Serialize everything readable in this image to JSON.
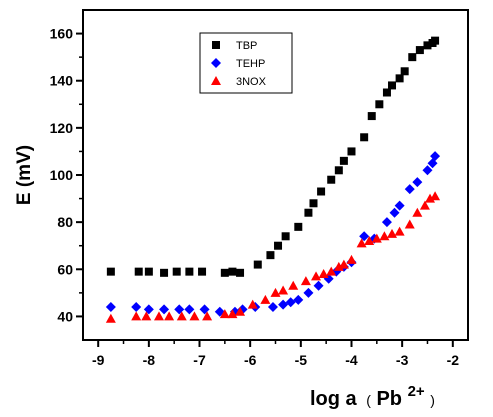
{
  "chart_data": {
    "type": "scatter",
    "ylabel": "E (mV)",
    "xlabel_parts": {
      "base": "log a",
      "paren_open": "(",
      "species": "Pb",
      "superscript": "2+",
      "paren_close": ")"
    },
    "xlim": [
      -9.3,
      -1.7
    ],
    "ylim": [
      30,
      170
    ],
    "x_ticks": [
      -9,
      -8,
      -7,
      -6,
      -5,
      -4,
      -3,
      -2
    ],
    "x_tick_labels": [
      "-9",
      "-8",
      "-7",
      "-6",
      "-5",
      "-4",
      "-3",
      "-2"
    ],
    "y_ticks": [
      40,
      60,
      80,
      100,
      120,
      140,
      160
    ],
    "y_tick_labels": [
      "40",
      "60",
      "80",
      "100",
      "120",
      "140",
      "160"
    ],
    "grid": false,
    "legend_position": "top-center",
    "series": [
      {
        "name": "TBP",
        "marker": "square",
        "color": "#000000",
        "x": [
          -8.75,
          -8.2,
          -8.0,
          -7.7,
          -7.45,
          -7.2,
          -6.95,
          -6.5,
          -6.35,
          -6.2,
          -5.85,
          -5.6,
          -5.45,
          -5.3,
          -5.05,
          -4.85,
          -4.75,
          -4.6,
          -4.4,
          -4.25,
          -4.15,
          -4.0,
          -3.75,
          -3.6,
          -3.45,
          -3.3,
          -3.2,
          -3.05,
          -2.95,
          -2.8,
          -2.65,
          -2.5,
          -2.4,
          -2.35
        ],
        "y": [
          59,
          59,
          59,
          58.5,
          59,
          59,
          59,
          58.5,
          59,
          58.5,
          62,
          66,
          70,
          74,
          78,
          84,
          88,
          93,
          98,
          102,
          106,
          110,
          116,
          125,
          130,
          135,
          138,
          141,
          144,
          150,
          153,
          155,
          156,
          157
        ]
      },
      {
        "name": "TEHP",
        "marker": "diamond",
        "color": "#0000ff",
        "x": [
          -8.75,
          -8.25,
          -8.0,
          -7.7,
          -7.4,
          -7.2,
          -6.9,
          -6.6,
          -6.3,
          -6.15,
          -5.9,
          -5.55,
          -5.35,
          -5.2,
          -5.05,
          -4.85,
          -4.65,
          -4.45,
          -4.3,
          -4.15,
          -4.0,
          -3.75,
          -3.55,
          -3.3,
          -3.15,
          -3.05,
          -2.85,
          -2.7,
          -2.5,
          -2.4,
          -2.35
        ],
        "y": [
          44,
          44,
          43,
          43,
          43,
          43,
          43,
          42,
          42,
          43,
          44,
          44,
          45,
          46,
          47,
          50,
          53,
          56,
          59,
          61,
          63,
          74,
          73,
          80,
          84,
          87,
          94,
          97,
          102,
          105,
          108
        ]
      },
      {
        "name": "3NOX",
        "marker": "triangle",
        "color": "#ff0000",
        "x": [
          -8.75,
          -8.25,
          -8.05,
          -7.8,
          -7.6,
          -7.35,
          -7.1,
          -6.85,
          -6.5,
          -6.35,
          -6.2,
          -5.95,
          -5.7,
          -5.5,
          -5.35,
          -5.15,
          -4.9,
          -4.7,
          -4.55,
          -4.4,
          -4.25,
          -4.15,
          -4.0,
          -3.8,
          -3.65,
          -3.5,
          -3.35,
          -3.2,
          -3.05,
          -2.85,
          -2.7,
          -2.55,
          -2.45,
          -2.35
        ],
        "y": [
          39,
          40,
          40,
          40,
          40,
          40,
          40,
          40,
          41,
          41,
          42,
          45,
          47,
          50,
          51,
          53,
          55,
          57,
          58,
          59,
          61,
          62,
          64,
          71,
          72,
          73,
          74,
          75,
          76,
          79,
          84,
          87,
          90,
          91
        ]
      }
    ]
  }
}
